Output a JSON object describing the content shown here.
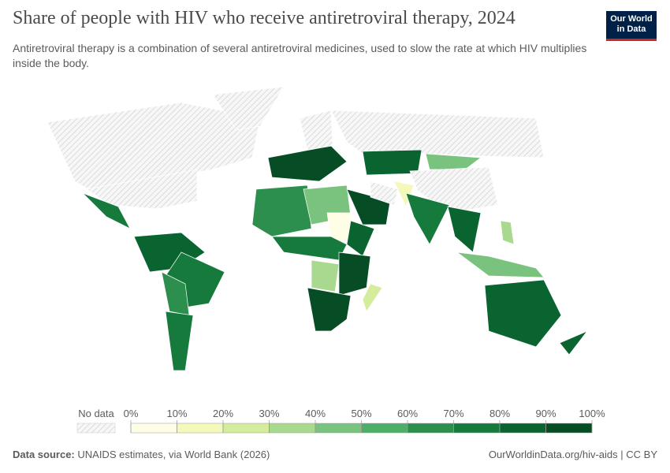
{
  "header": {
    "title": "Share of people with HIV who receive antiretroviral therapy, 2024",
    "subtitle": "Antiretroviral therapy is a combination of several antiretroviral medicines, used to slow the rate at which HIV multiplies inside the body.",
    "logo": [
      "Our World",
      "in Data"
    ]
  },
  "legend": {
    "no_data": "No data",
    "ticks": [
      {
        "value": 0,
        "label": "0%"
      },
      {
        "value": 10,
        "label": "10%"
      },
      {
        "value": 20,
        "label": "20%"
      },
      {
        "value": 30,
        "label": "30%"
      },
      {
        "value": 40,
        "label": "40%"
      },
      {
        "value": 50,
        "label": "50%"
      },
      {
        "value": 60,
        "label": "60%"
      },
      {
        "value": 70,
        "label": "70%"
      },
      {
        "value": 80,
        "label": "80%"
      },
      {
        "value": 90,
        "label": "90%"
      },
      {
        "value": 100,
        "label": "100%"
      }
    ],
    "colors": [
      "#fefde6",
      "#f4f8b9",
      "#d5ec9d",
      "#a8d98e",
      "#79c37e",
      "#4caf68",
      "#2d8f4e",
      "#177a3d",
      "#0a6430",
      "#064c25"
    ]
  },
  "footer": {
    "source_label": "Data source:",
    "source": "UNAIDS estimates, via World Bank (2026)",
    "url": "OurWorldinData.org/hiv-aids | CC BY"
  }
}
